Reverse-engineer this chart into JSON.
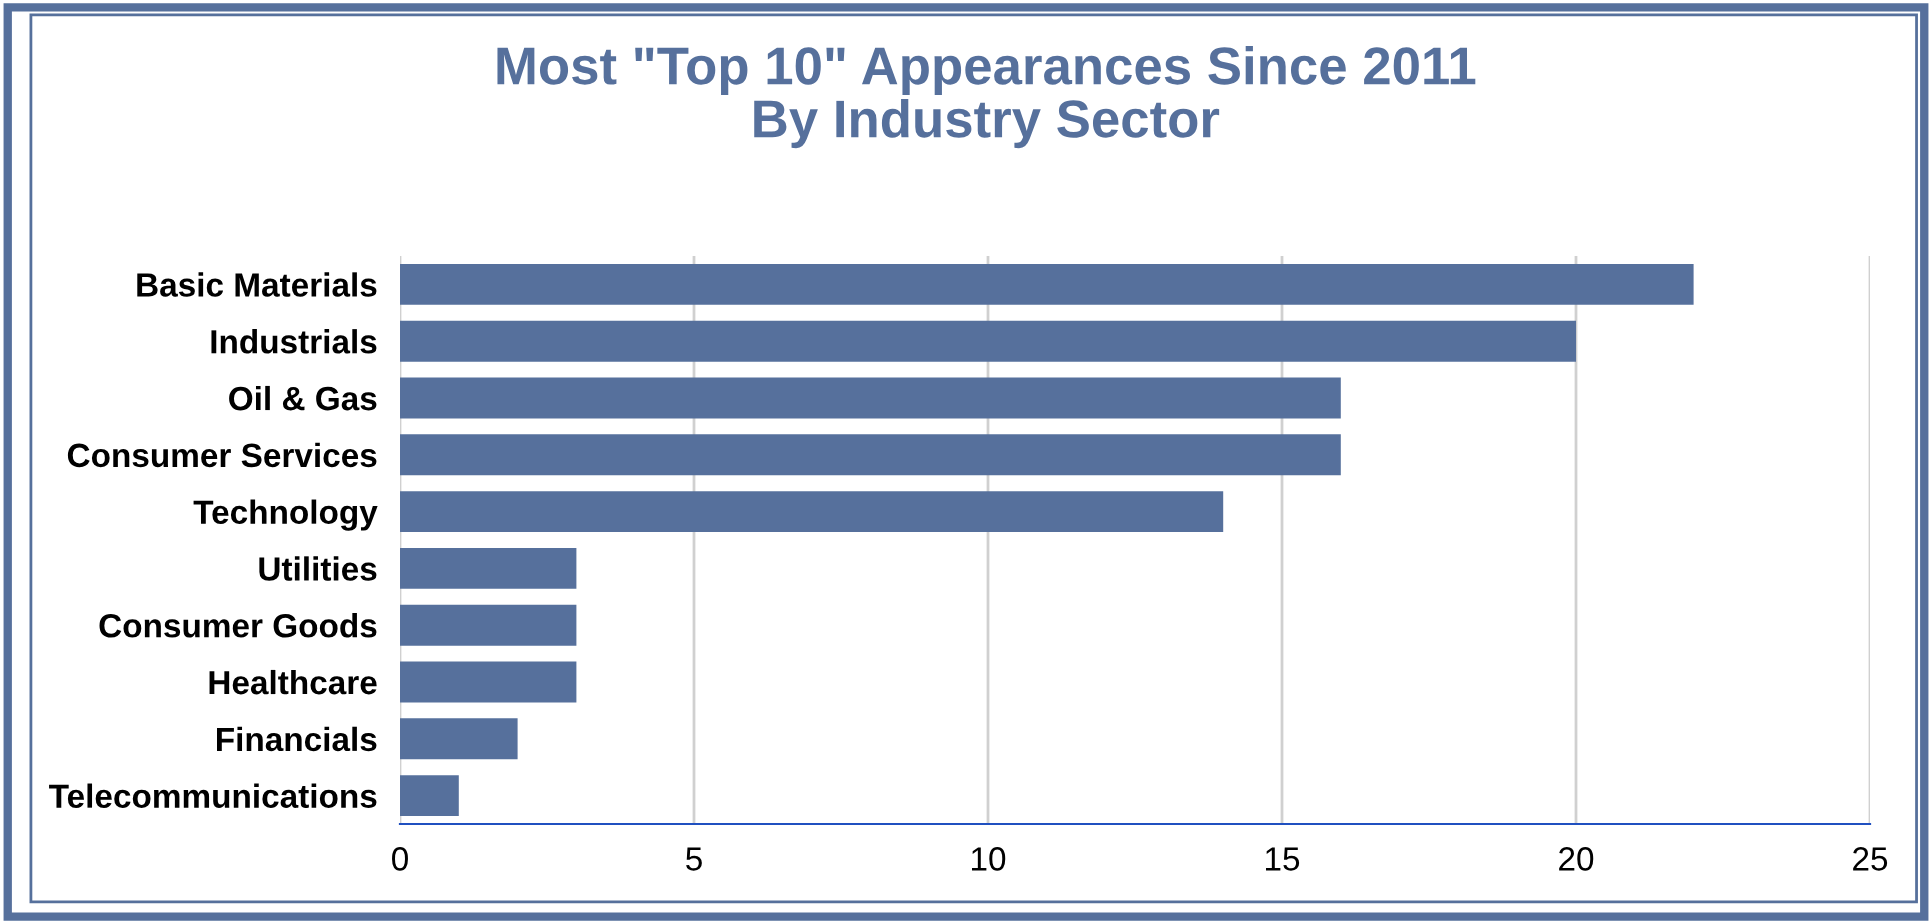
{
  "chart_data": {
    "type": "bar",
    "orientation": "horizontal",
    "title": "Most \"Top 10\" Appearances Since 2011\nBy Industry Sector",
    "categories": [
      "Basic Materials",
      "Industrials",
      "Oil & Gas",
      "Consumer Services",
      "Technology",
      "Utilities",
      "Consumer Goods",
      "Healthcare",
      "Financials",
      "Telecommunications"
    ],
    "values": [
      22,
      20,
      16,
      16,
      14,
      3,
      3,
      3,
      2,
      1
    ],
    "color": "#56709c",
    "xlim": [
      0,
      25
    ],
    "xticks": [
      0,
      5,
      10,
      15,
      20,
      25
    ],
    "grid": "x"
  }
}
